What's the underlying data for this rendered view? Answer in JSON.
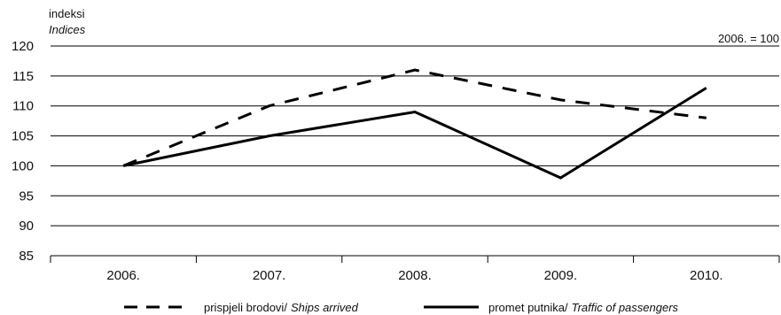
{
  "chart_data": {
    "type": "line",
    "ylabel": "indeksi",
    "ylabel_en": "Indices",
    "base_note": "2006. = 100",
    "categories": [
      "2006.",
      "2007.",
      "2008.",
      "2009.",
      "2010."
    ],
    "ylim": [
      85,
      120
    ],
    "yticks": [
      85,
      90,
      95,
      100,
      105,
      110,
      115,
      120
    ],
    "grid": true,
    "legend_position": "bottom",
    "series": [
      {
        "name": "prispjeli brodovi/",
        "name_en": "Ships arrived",
        "style": "dashed",
        "values": [
          100,
          110,
          116,
          111,
          108
        ]
      },
      {
        "name": "promet putnika/",
        "name_en": "Traffic of passengers",
        "style": "solid",
        "values": [
          100,
          105,
          109,
          98,
          113
        ]
      }
    ],
    "colors": {
      "line": "#000000",
      "grid": "#000000"
    }
  }
}
